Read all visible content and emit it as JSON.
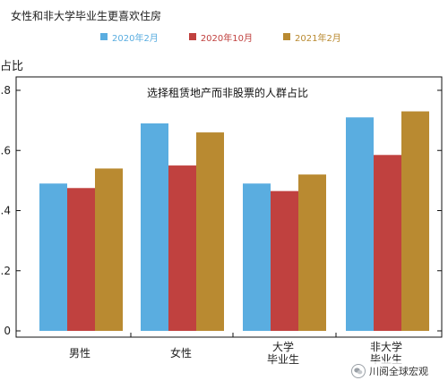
{
  "header": {
    "title": "女性和非大学毕业生更喜欢住房"
  },
  "watermark": {
    "text": "川阅全球宏观"
  },
  "chart_data": {
    "type": "bar",
    "title": "选择租赁地产而非股票的人群占比",
    "ylabel": "占比",
    "xlabel": "",
    "ylim": [
      0,
      0.85
    ],
    "yticks": [
      0,
      0.2,
      0.4,
      0.6,
      0.8
    ],
    "ytick_labels": [
      "0",
      ".2",
      ".4",
      ".6",
      ".8"
    ],
    "categories": [
      "男性",
      "女性",
      "大学\n毕业生",
      "非大学\n毕业生"
    ],
    "series": [
      {
        "name": "2020年2月",
        "color": "#5aade0",
        "values": [
          0.49,
          0.69,
          0.49,
          0.71
        ]
      },
      {
        "name": "2020年10月",
        "color": "#c0413f",
        "values": [
          0.475,
          0.55,
          0.465,
          0.585
        ]
      },
      {
        "name": "2021年2月",
        "color": "#b98a31",
        "values": [
          0.54,
          0.66,
          0.52,
          0.73
        ]
      }
    ],
    "legend_position": "top",
    "grid": false
  }
}
